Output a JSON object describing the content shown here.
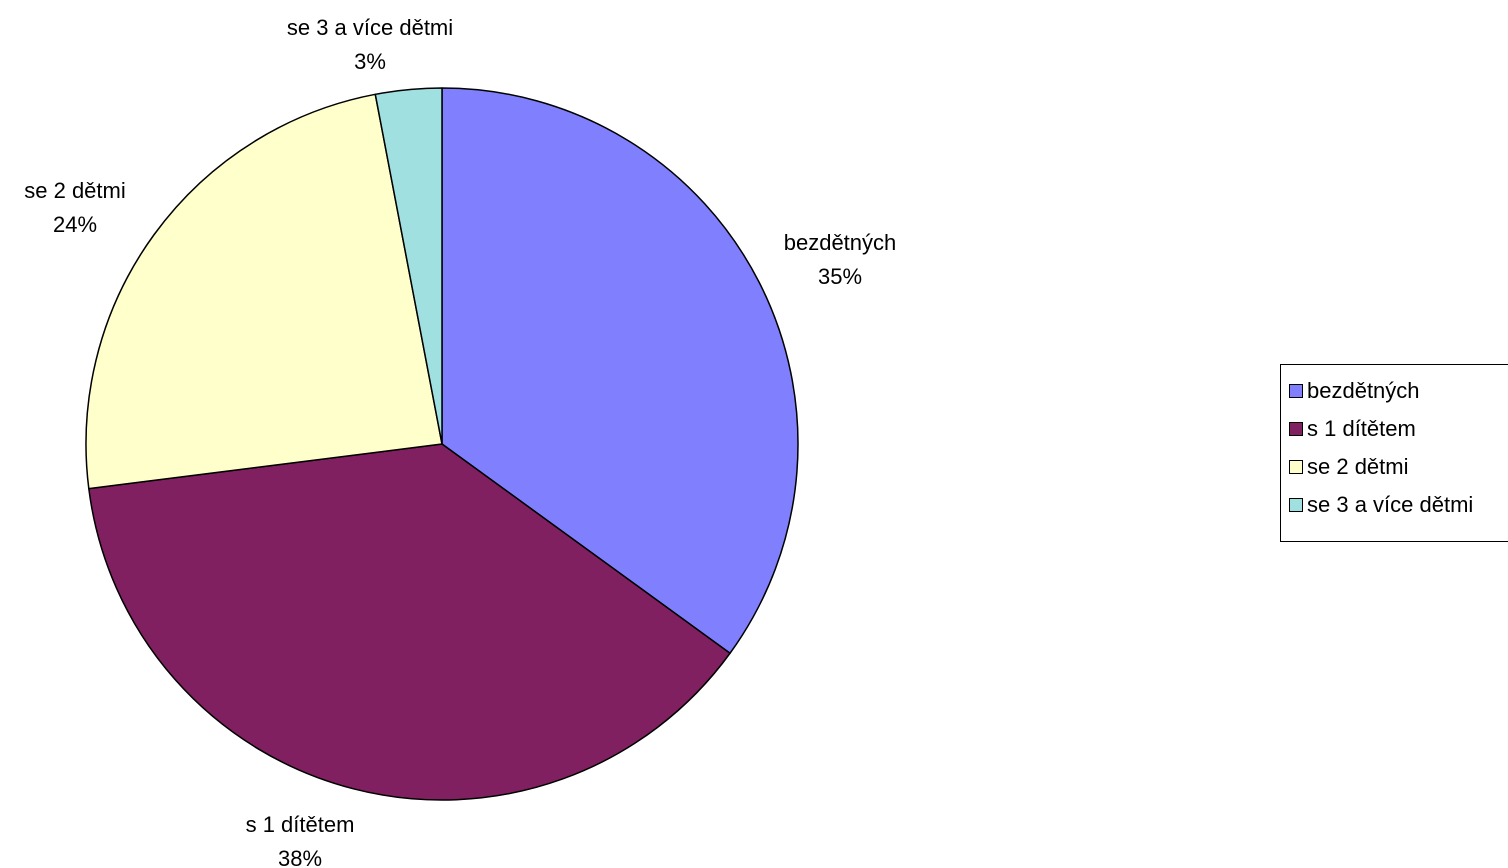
{
  "chart_data": {
    "type": "pie",
    "title": "",
    "categories": [
      "bezdětných",
      "s 1 dítětem",
      "se 2 dětmi",
      "se 3 a více dětmi"
    ],
    "values": [
      35,
      38,
      24,
      3
    ],
    "value_labels": [
      "35%",
      "38%",
      "24%",
      "3%"
    ],
    "colors": [
      "#8080ff",
      "#802060",
      "#ffffcc",
      "#a0e0e0"
    ],
    "start_angle_deg": 0,
    "direction": "clockwise",
    "legend_position": "right"
  },
  "legend": {
    "items": [
      {
        "label": "bezdětných",
        "color": "#8080ff"
      },
      {
        "label": "s 1 dítětem",
        "color": "#802060"
      },
      {
        "label": "se 2 dětmi",
        "color": "#ffffcc"
      },
      {
        "label": "se 3 a více dětmi",
        "color": "#a0e0e0"
      }
    ]
  }
}
